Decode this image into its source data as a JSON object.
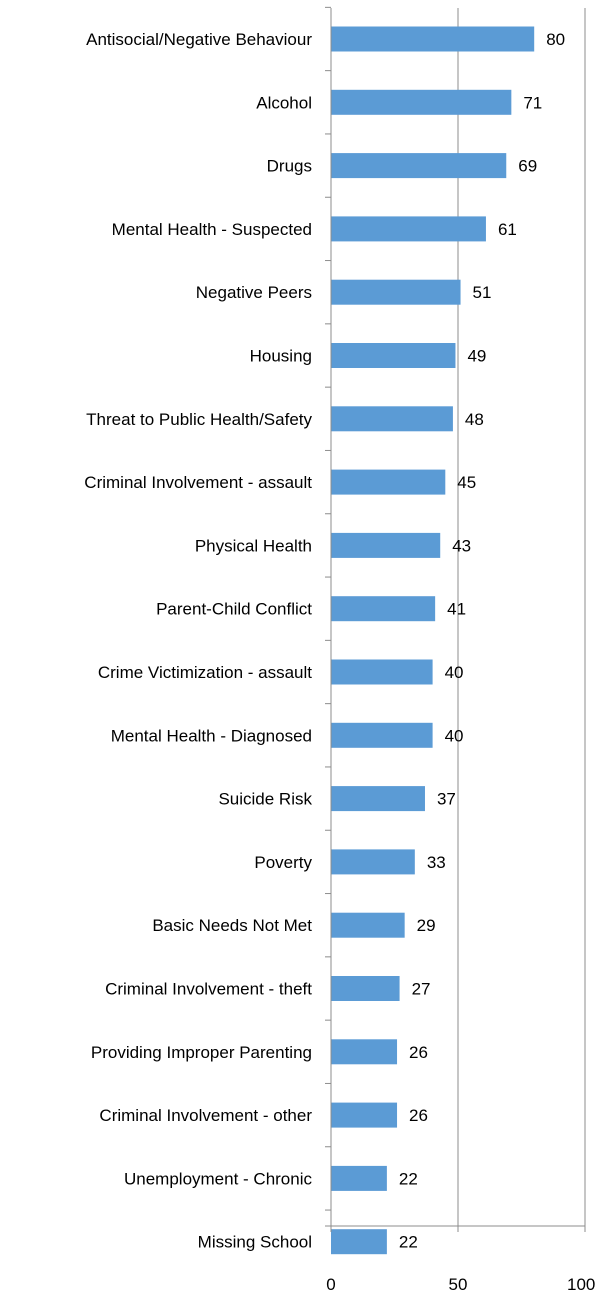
{
  "chart_data": {
    "type": "bar",
    "orientation": "horizontal",
    "categories": [
      "Antisocial/Negative Behaviour",
      "Alcohol",
      "Drugs",
      "Mental Health - Suspected",
      "Negative Peers",
      "Housing",
      "Threat to Public Health/Safety",
      "Criminal Involvement - assault",
      "Physical Health",
      "Parent-Child Conflict",
      "Crime Victimization - assault",
      "Mental Health - Diagnosed",
      "Suicide Risk",
      "Poverty",
      "Basic Needs Not Met",
      "Criminal Involvement - theft",
      "Providing Improper Parenting",
      "Criminal Involvement - other",
      "Unemployment - Chronic",
      "Missing School"
    ],
    "values": [
      80,
      71,
      69,
      61,
      51,
      49,
      48,
      45,
      43,
      41,
      40,
      40,
      37,
      33,
      29,
      27,
      26,
      26,
      22,
      22
    ],
    "data_labels": [
      "80",
      "71",
      "69",
      "61",
      "51",
      "49",
      "48",
      "45",
      "43",
      "41",
      "40",
      "40",
      "37",
      "33",
      "29",
      "27",
      "26",
      "26",
      "22",
      "22"
    ],
    "xlim": [
      0,
      100
    ],
    "x_ticks": [
      0,
      50,
      100
    ],
    "x_tick_labels": [
      "0",
      "50",
      "100"
    ],
    "title": "",
    "xlabel": "",
    "ylabel": "",
    "grid": "vertical",
    "legend": "none",
    "colors": {
      "bar": "#5b9bd5",
      "gridline": "#8c8c8c",
      "axis": "#8c8c8c",
      "text": "#000000"
    }
  }
}
